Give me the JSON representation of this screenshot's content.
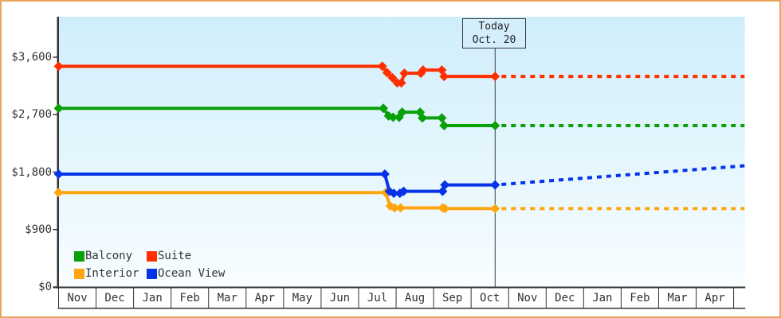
{
  "window": {
    "border_color": "#eaa55f",
    "background_color": "#ffffff"
  },
  "chart_data": {
    "type": "line",
    "description": "Cruise cabin price history by category with Today marker and dotted forecast",
    "plot": {
      "bg_gradient_top": "#cfeefb",
      "bg_gradient_bottom": "#f8fdff",
      "axis_color": "#333333",
      "grid": "off",
      "legend_position": "bottom-left-inside"
    },
    "y_axis": {
      "ticks": [
        {
          "label": "$0",
          "value": 0
        },
        {
          "label": "$900",
          "value": 900
        },
        {
          "label": "$1,800",
          "value": 1800
        },
        {
          "label": "$2,700",
          "value": 2700
        },
        {
          "label": "$3,600",
          "value": 3600
        }
      ],
      "ylim": [
        0,
        4235
      ],
      "unit": "USD"
    },
    "x_axis": {
      "labels": [
        "Nov",
        "Dec",
        "Jan",
        "Feb",
        "Mar",
        "Apr",
        "May",
        "Jun",
        "Jul",
        "Aug",
        "Sep",
        "Oct",
        "Nov",
        "Dec",
        "Jan",
        "Feb",
        "Mar",
        "Apr"
      ],
      "months_span": 18.29
    },
    "today_marker": {
      "line1": "Today",
      "line2": "Oct. 20",
      "x_months": 11.64
    },
    "series": [
      {
        "name": "Balcony",
        "color": "#09a009",
        "solid_points": [
          [
            0,
            2799
          ],
          [
            8.66,
            2799
          ],
          [
            8.8,
            2679
          ],
          [
            8.92,
            2659
          ],
          [
            9.08,
            2659
          ],
          [
            9.16,
            2739
          ],
          [
            9.64,
            2739
          ],
          [
            9.7,
            2649
          ],
          [
            10.22,
            2649
          ],
          [
            10.28,
            2529
          ],
          [
            11.64,
            2529
          ]
        ],
        "forecast_points": [
          [
            11.64,
            2529
          ],
          [
            18.29,
            2529
          ]
        ]
      },
      {
        "name": "Suite",
        "color": "#ff2f00",
        "solid_points": [
          [
            0,
            3459
          ],
          [
            8.63,
            3459
          ],
          [
            8.76,
            3359
          ],
          [
            8.9,
            3279
          ],
          [
            9.03,
            3199
          ],
          [
            9.14,
            3199
          ],
          [
            9.22,
            3349
          ],
          [
            9.66,
            3349
          ],
          [
            9.72,
            3399
          ],
          [
            10.22,
            3399
          ],
          [
            10.28,
            3299
          ],
          [
            11.64,
            3299
          ]
        ],
        "forecast_points": [
          [
            11.64,
            3299
          ],
          [
            18.29,
            3299
          ]
        ]
      },
      {
        "name": "Interior",
        "color": "#ffa60f",
        "solid_points": [
          [
            0,
            1479
          ],
          [
            8.72,
            1479
          ],
          [
            8.84,
            1269
          ],
          [
            8.96,
            1239
          ],
          [
            9.12,
            1239
          ],
          [
            10.24,
            1239
          ],
          [
            10.3,
            1229
          ],
          [
            11.64,
            1229
          ]
        ],
        "forecast_points": [
          [
            11.64,
            1229
          ],
          [
            18.29,
            1229
          ]
        ]
      },
      {
        "name": "Ocean View",
        "color": "#0534e8",
        "solid_points": [
          [
            0,
            1769
          ],
          [
            8.7,
            1769
          ],
          [
            8.82,
            1499
          ],
          [
            8.94,
            1469
          ],
          [
            9.1,
            1469
          ],
          [
            9.2,
            1499
          ],
          [
            10.24,
            1499
          ],
          [
            10.3,
            1599
          ],
          [
            11.64,
            1599
          ]
        ],
        "forecast_points": [
          [
            11.64,
            1599
          ],
          [
            18.29,
            1899
          ]
        ]
      }
    ],
    "legend": {
      "rows": [
        [
          "Balcony",
          "Suite"
        ],
        [
          "Interior",
          "Ocean View"
        ]
      ]
    }
  }
}
